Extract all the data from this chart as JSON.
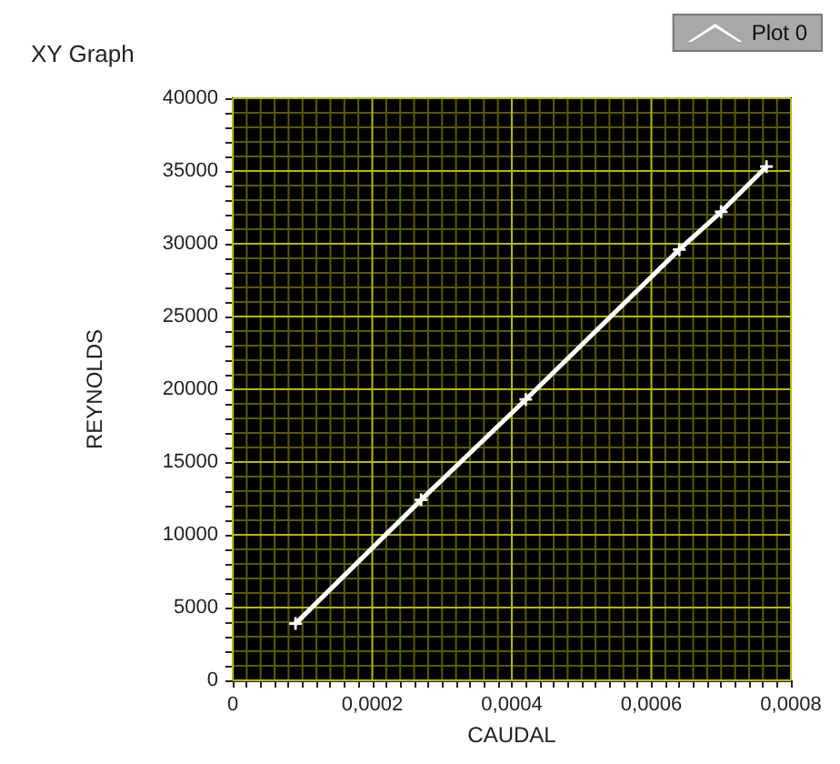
{
  "chart_data": {
    "type": "line",
    "title": "XY Graph",
    "xlabel": "CAUDAL",
    "ylabel": "REYNOLDS",
    "series": [
      {
        "name": "Plot 0",
        "color": "#ffffff",
        "x": [
          9e-05,
          0.00027,
          0.00042,
          0.00064,
          0.0007,
          0.000765
        ],
        "values": [
          3900,
          12400,
          19300,
          29600,
          32200,
          35300
        ]
      }
    ],
    "xlim": [
      0,
      0.0008
    ],
    "xticks": [
      0,
      {
        "value": 2e-05,
        "label": null
      },
      {
        "value": 4e-05,
        "label": null
      },
      {
        "value": 6e-05,
        "label": null
      },
      {
        "value": 8e-05,
        "label": null
      },
      {
        "value": 0.0001,
        "label": null
      },
      {
        "value": 0.00012,
        "label": null
      },
      {
        "value": 0.00014,
        "label": null
      },
      {
        "value": 0.00016,
        "label": null
      },
      {
        "value": 0.00018,
        "label": null
      },
      {
        "value": 0.0002,
        "label": "0,0002"
      },
      {
        "value": 0.00022,
        "label": null
      },
      {
        "value": 0.00024,
        "label": null
      },
      {
        "value": 0.00026,
        "label": null
      },
      {
        "value": 0.00028,
        "label": null
      },
      {
        "value": 0.0003,
        "label": null
      },
      {
        "value": 0.00032,
        "label": null
      },
      {
        "value": 0.00034,
        "label": null
      },
      {
        "value": 0.00036,
        "label": null
      },
      {
        "value": 0.00038,
        "label": null
      },
      {
        "value": 0.0004,
        "label": "0,0004"
      },
      {
        "value": 0.00042,
        "label": null
      },
      {
        "value": 0.00044,
        "label": null
      },
      {
        "value": 0.00046,
        "label": null
      },
      {
        "value": 0.00048,
        "label": null
      },
      {
        "value": 0.0005,
        "label": null
      },
      {
        "value": 0.00052,
        "label": null
      },
      {
        "value": 0.00054,
        "label": null
      },
      {
        "value": 0.00056,
        "label": null
      },
      {
        "value": 0.00058,
        "label": null
      },
      {
        "value": 0.0006,
        "label": "0,0006"
      },
      {
        "value": 0.00062,
        "label": null
      },
      {
        "value": 0.00064,
        "label": null
      },
      {
        "value": 0.00066,
        "label": null
      },
      {
        "value": 0.00068,
        "label": null
      },
      {
        "value": 0.0007,
        "label": null
      },
      {
        "value": 0.00072,
        "label": null
      },
      {
        "value": 0.00074,
        "label": null
      },
      {
        "value": 0.00076,
        "label": null
      },
      {
        "value": 0.00078,
        "label": null
      },
      {
        "value": 0.0008,
        "label": "0,0008"
      }
    ],
    "ylim": [
      0,
      40000
    ],
    "yticks": [
      0,
      {
        "value": 1000,
        "label": null
      },
      {
        "value": 2000,
        "label": null
      },
      {
        "value": 3000,
        "label": null
      },
      {
        "value": 4000,
        "label": null
      },
      5000,
      {
        "value": 6000,
        "label": null
      },
      {
        "value": 7000,
        "label": null
      },
      {
        "value": 8000,
        "label": null
      },
      {
        "value": 9000,
        "label": null
      },
      10000,
      {
        "value": 11000,
        "label": null
      },
      {
        "value": 12000,
        "label": null
      },
      {
        "value": 13000,
        "label": null
      },
      {
        "value": 14000,
        "label": null
      },
      15000,
      {
        "value": 16000,
        "label": null
      },
      {
        "value": 17000,
        "label": null
      },
      {
        "value": 18000,
        "label": null
      },
      {
        "value": 19000,
        "label": null
      },
      20000,
      {
        "value": 21000,
        "label": null
      },
      {
        "value": 22000,
        "label": null
      },
      {
        "value": 23000,
        "label": null
      },
      {
        "value": 24000,
        "label": null
      },
      25000,
      {
        "value": 26000,
        "label": null
      },
      {
        "value": 27000,
        "label": null
      },
      {
        "value": 28000,
        "label": null
      },
      {
        "value": 29000,
        "label": null
      },
      30000,
      {
        "value": 31000,
        "label": null
      },
      {
        "value": 32000,
        "label": null
      },
      {
        "value": 33000,
        "label": null
      },
      {
        "value": 34000,
        "label": null
      },
      35000,
      {
        "value": 36000,
        "label": null
      },
      {
        "value": 37000,
        "label": null
      },
      {
        "value": 38000,
        "label": null
      },
      {
        "value": 39000,
        "label": null
      },
      40000
    ],
    "grid": true,
    "legend": "top right",
    "marker": "cross",
    "line_style": "solid"
  }
}
